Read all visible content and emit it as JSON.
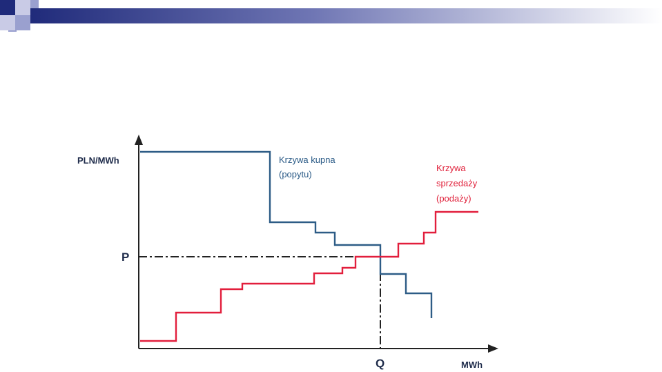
{
  "diagram": {
    "y_axis_label": "PLN/MWh",
    "x_axis_label": "MWh",
    "price_label": "P",
    "quantity_label": "Q",
    "demand_label": [
      "Krzywa kupna",
      "(popytu)"
    ],
    "supply_label": [
      "Krzywa",
      "sprzedaży",
      "(podaży)"
    ],
    "colors": {
      "demand": "#2d5c86",
      "supply": "#e21e3c",
      "axis": "#222222",
      "header_dark": "#1f2a7a"
    }
  },
  "chart_data": {
    "type": "line",
    "xlabel": "MWh",
    "ylabel": "PLN/MWh",
    "series": [
      {
        "name": "Krzywa kupna (popytu)",
        "shape": "step",
        "direction": "decreasing"
      },
      {
        "name": "Krzywa sprzedaży (podaży)",
        "shape": "step",
        "direction": "increasing"
      }
    ],
    "equilibrium": {
      "price": "P",
      "quantity": "Q"
    }
  }
}
